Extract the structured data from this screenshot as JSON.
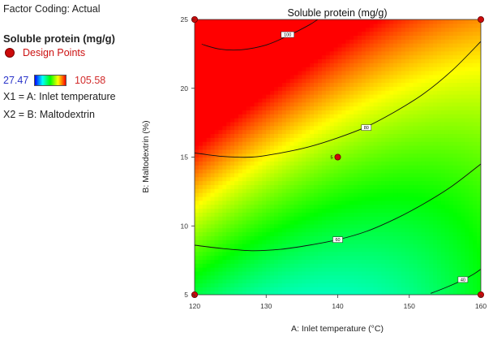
{
  "info": {
    "factor_coding": "Factor Coding: Actual",
    "response_title": "Soluble protein (mg/g)",
    "design_points_label": "Design Points",
    "legend_min": "27.47",
    "legend_max": "105.58",
    "x1_text": "X1 = A: Inlet temperature",
    "x2_text": "X2 = B: Maltodextrin"
  },
  "colors": {
    "design_point": "#cc0a0a",
    "legend_min_text": "#2b35c9",
    "legend_max_text": "#d22b2b",
    "contour_line": "#111111"
  },
  "chart_data": {
    "type": "contour",
    "title": "Soluble protein (mg/g)",
    "xlabel": "A: Inlet temperature (°C)",
    "ylabel": "B: Maltodextrin  (%)",
    "xlim": [
      120,
      160
    ],
    "ylim": [
      5,
      25
    ],
    "xticks": [
      "120",
      "130",
      "140",
      "150",
      "160"
    ],
    "yticks": [
      "5",
      "10",
      "15",
      "20",
      "25"
    ],
    "color_range": [
      27.47,
      105.58
    ],
    "contours": [
      {
        "level": "100",
        "points": [
          [
            121,
            23.2
          ],
          [
            123.5,
            22.85
          ],
          [
            126.5,
            22.8
          ],
          [
            130,
            23.15
          ],
          [
            133,
            23.8
          ],
          [
            136,
            24.6
          ],
          [
            137.2,
            25.0
          ]
        ]
      },
      {
        "level": "80",
        "points": [
          [
            120,
            15.3
          ],
          [
            124,
            15.05
          ],
          [
            128,
            15.0
          ],
          [
            132,
            15.3
          ],
          [
            136,
            15.75
          ],
          [
            140,
            16.4
          ],
          [
            144,
            17.2
          ],
          [
            148,
            18.3
          ],
          [
            152,
            19.6
          ],
          [
            156,
            21.3
          ],
          [
            160,
            23.4
          ]
        ]
      },
      {
        "level": "60",
        "points": [
          [
            120,
            8.6
          ],
          [
            124,
            8.35
          ],
          [
            128,
            8.2
          ],
          [
            132,
            8.3
          ],
          [
            136,
            8.6
          ],
          [
            140,
            9.0
          ],
          [
            144,
            9.6
          ],
          [
            148,
            10.5
          ],
          [
            152,
            11.6
          ],
          [
            156,
            12.9
          ],
          [
            160,
            14.5
          ]
        ]
      },
      {
        "level": "40",
        "points": [
          [
            153,
            5.1
          ],
          [
            155,
            5.5
          ],
          [
            157,
            5.95
          ],
          [
            159,
            6.5
          ],
          [
            160,
            6.85
          ]
        ]
      }
    ],
    "contour_labels": [
      {
        "text": "100",
        "x": 133,
        "y": 23.9
      },
      {
        "text": "80",
        "x": 144,
        "y": 17.15
      },
      {
        "text": "60",
        "x": 140,
        "y": 9.0
      },
      {
        "text": "40",
        "x": 157.5,
        "y": 6.1
      }
    ],
    "design_points": [
      {
        "x": 120,
        "y": 5,
        "label": ""
      },
      {
        "x": 120,
        "y": 25,
        "label": ""
      },
      {
        "x": 160,
        "y": 5,
        "label": ""
      },
      {
        "x": 160,
        "y": 25,
        "label": ""
      },
      {
        "x": 140,
        "y": 15,
        "label": "5"
      }
    ]
  }
}
